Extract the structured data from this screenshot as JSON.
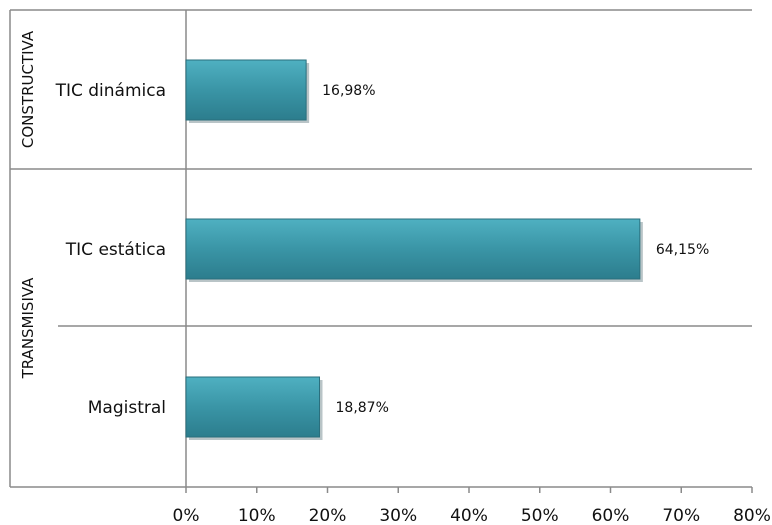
{
  "chart_data": {
    "type": "bar",
    "orientation": "horizontal",
    "categories": [
      "TIC dinámica",
      "TIC estática",
      "Magistral"
    ],
    "groups": [
      {
        "label": "CONSTRUCTIVA",
        "categories": [
          "TIC dinámica"
        ]
      },
      {
        "label": "TRANSMISIVA",
        "categories": [
          "TIC estática",
          "Magistral"
        ]
      }
    ],
    "values": [
      16.98,
      64.15,
      18.87
    ],
    "data_labels": [
      "16,98%",
      "64,15%",
      "18,87%"
    ],
    "x_ticks": [
      "0%",
      "10%",
      "20%",
      "30%",
      "40%",
      "50%",
      "60%",
      "70%",
      "80%"
    ],
    "xlim": [
      0,
      80
    ],
    "title": "",
    "xlabel": "",
    "ylabel": "",
    "grid": false,
    "bar_color": "#3a95a6"
  }
}
